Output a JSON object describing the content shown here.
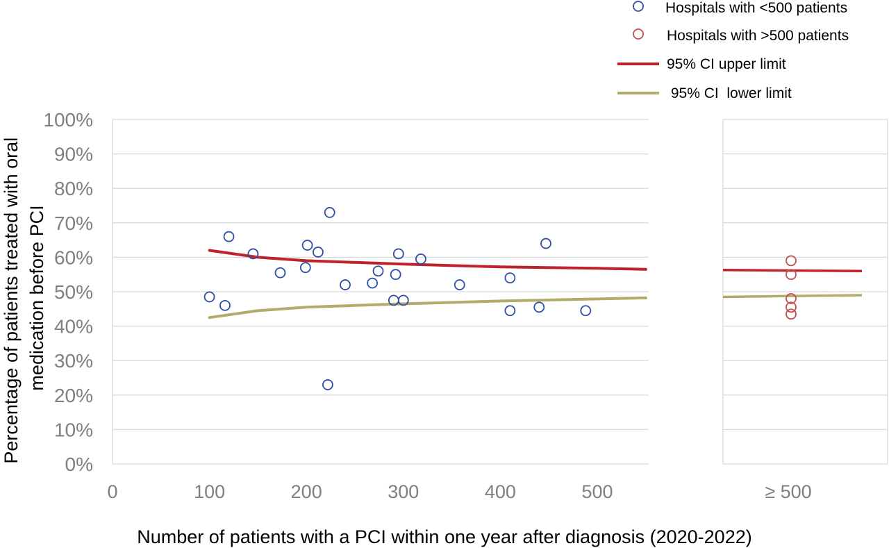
{
  "chart_data": {
    "type": "scatter",
    "title": "",
    "xlabel": "Number of patients with a PCI within one year after diagnosis (2020-2022)",
    "ylabel_lines": [
      "Percentage of patients treated with oral",
      "medication before PCI"
    ],
    "ylim": [
      0,
      100
    ],
    "y_ticks": [
      "0%",
      "10%",
      "20%",
      "30%",
      "40%",
      "50%",
      "60%",
      "70%",
      "80%",
      "90%",
      "100%"
    ],
    "grid": true,
    "legend_position": "top-right",
    "panels": [
      {
        "name": "main",
        "xlim": [
          0,
          550
        ],
        "x_ticks": [
          0,
          100,
          200,
          300,
          400,
          500
        ],
        "x_tick_labels": [
          "0",
          "100",
          "200",
          "300",
          "400",
          "500"
        ]
      },
      {
        "name": "large",
        "x_tick_labels": [
          "≥ 500"
        ]
      }
    ],
    "series": [
      {
        "name": "Hospitals with <500 patients",
        "kind": "scatter",
        "color": "#2e4fa3",
        "points": [
          [
            100,
            48.5
          ],
          [
            116,
            46
          ],
          [
            120,
            66
          ],
          [
            145,
            61
          ],
          [
            173,
            55.5
          ],
          [
            199,
            57
          ],
          [
            201,
            63.5
          ],
          [
            212,
            61.5
          ],
          [
            222,
            23
          ],
          [
            224,
            73
          ],
          [
            240,
            52
          ],
          [
            268,
            52.5
          ],
          [
            274,
            56
          ],
          [
            290,
            47.5
          ],
          [
            292,
            55
          ],
          [
            295,
            61
          ],
          [
            300,
            47.5
          ],
          [
            318,
            59.5
          ],
          [
            358,
            52
          ],
          [
            410,
            54
          ],
          [
            410,
            44.5
          ],
          [
            440,
            45.5
          ],
          [
            447,
            64
          ],
          [
            488,
            44.5
          ]
        ]
      },
      {
        "name": "Hospitals with >500 patients",
        "kind": "scatter",
        "color": "#c0504d",
        "panel": "large",
        "values": [
          59,
          55,
          48,
          45.5,
          43.5
        ]
      },
      {
        "name": "95% CI upper limit",
        "kind": "line",
        "color": "#c0222b",
        "points": [
          [
            100,
            62
          ],
          [
            150,
            60
          ],
          [
            200,
            59
          ],
          [
            250,
            58.5
          ],
          [
            300,
            58
          ],
          [
            400,
            57.2
          ],
          [
            500,
            56.8
          ],
          [
            550,
            56.5
          ]
        ],
        "large_panel": [
          56.3,
          56
        ]
      },
      {
        "name": " 95% CI  lower limit",
        "kind": "line",
        "color": "#b2ab6a",
        "points": [
          [
            100,
            42.5
          ],
          [
            150,
            44.5
          ],
          [
            200,
            45.5
          ],
          [
            250,
            46
          ],
          [
            300,
            46.5
          ],
          [
            400,
            47.3
          ],
          [
            500,
            47.9
          ],
          [
            550,
            48.2
          ]
        ],
        "large_panel": [
          48.5,
          49
        ]
      }
    ]
  }
}
